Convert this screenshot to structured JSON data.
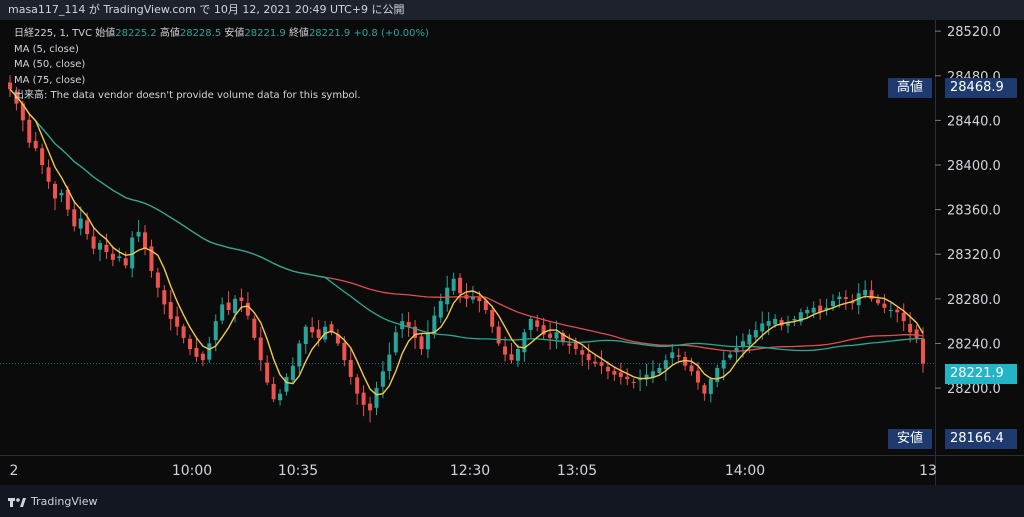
{
  "header": {
    "text": "masa117_114 が TradingView.com で 10月 12, 2021 20:49 UTC+9 に公開"
  },
  "legend": {
    "symbol": "日経225, 1, TVC",
    "open_label": "始値",
    "open": "28225.2",
    "high_label": "高値",
    "high": "28228.5",
    "low_label": "安値",
    "low": "28221.9",
    "close_label": "終値",
    "close": "28221.9",
    "change": "+0.8 (+0.00%)",
    "ma5": "MA (5, close)",
    "ma50": "MA (50, close)",
    "ma75": "MA (75, close)",
    "volume_note": "出来高: The data vendor doesn't provide volume data for this symbol."
  },
  "tags": {
    "high_label": "高値",
    "high_value": "28468.9",
    "low_label": "安値",
    "low_value": "28166.4",
    "last_value": "28221.9"
  },
  "footer": {
    "brand": "TradingView"
  },
  "colors": {
    "up": "#26a69a",
    "down": "#ef5350",
    "ma5": "#f2c94c",
    "ma50": "#22ab94",
    "ma75": "#e04e4e",
    "tag_bg": "#1e3a6e",
    "last_bg": "#22b5c8"
  },
  "chart_data": {
    "type": "candlestick",
    "yticks": [
      28200,
      28240,
      28280,
      28320,
      28360,
      28400,
      28440,
      28480,
      28520
    ],
    "ylim": [
      28140,
      28530
    ],
    "x_tick_labels": [
      "2",
      "10:00",
      "10:35",
      "12:30",
      "13:05",
      "14:00",
      "13"
    ],
    "high": 28468.9,
    "low": 28166.4,
    "last": 28221.9,
    "close_series": [
      28468,
      28455,
      28440,
      28420,
      28415,
      28400,
      28385,
      28370,
      28375,
      28360,
      28345,
      28352,
      28338,
      28325,
      28330,
      28322,
      28315,
      28318,
      28310,
      28335,
      28340,
      28325,
      28305,
      28290,
      28275,
      28262,
      28255,
      28245,
      28235,
      28228,
      28225,
      28240,
      28260,
      28275,
      28270,
      28280,
      28278,
      28265,
      28245,
      28225,
      28205,
      28190,
      28195,
      28210,
      28220,
      28240,
      28255,
      28250,
      28245,
      28255,
      28250,
      28240,
      28225,
      28210,
      28195,
      28185,
      28180,
      28200,
      28215,
      28230,
      28250,
      28260,
      28255,
      28245,
      28235,
      28250,
      28265,
      28278,
      28290,
      28298,
      28285,
      28280,
      28282,
      28278,
      28270,
      28255,
      28240,
      28230,
      28225,
      28235,
      28250,
      28262,
      28255,
      28248,
      28245,
      28250,
      28242,
      28238,
      28235,
      28230,
      28225,
      28222,
      28220,
      28215,
      28212,
      28210,
      28208,
      28205,
      28208,
      28212,
      28215,
      28218,
      28225,
      28232,
      28228,
      28220,
      28215,
      28205,
      28195,
      28208,
      28218,
      28225,
      28230,
      28236,
      28242,
      28248,
      28252,
      28258,
      28260,
      28262,
      28256,
      28258,
      28262,
      28268,
      28270,
      28272,
      28268,
      28272,
      28278,
      28282,
      28280,
      28276,
      28285,
      28288,
      28280,
      28276,
      28272,
      28270,
      28268,
      28260,
      28250,
      28245,
      28222
    ]
  }
}
